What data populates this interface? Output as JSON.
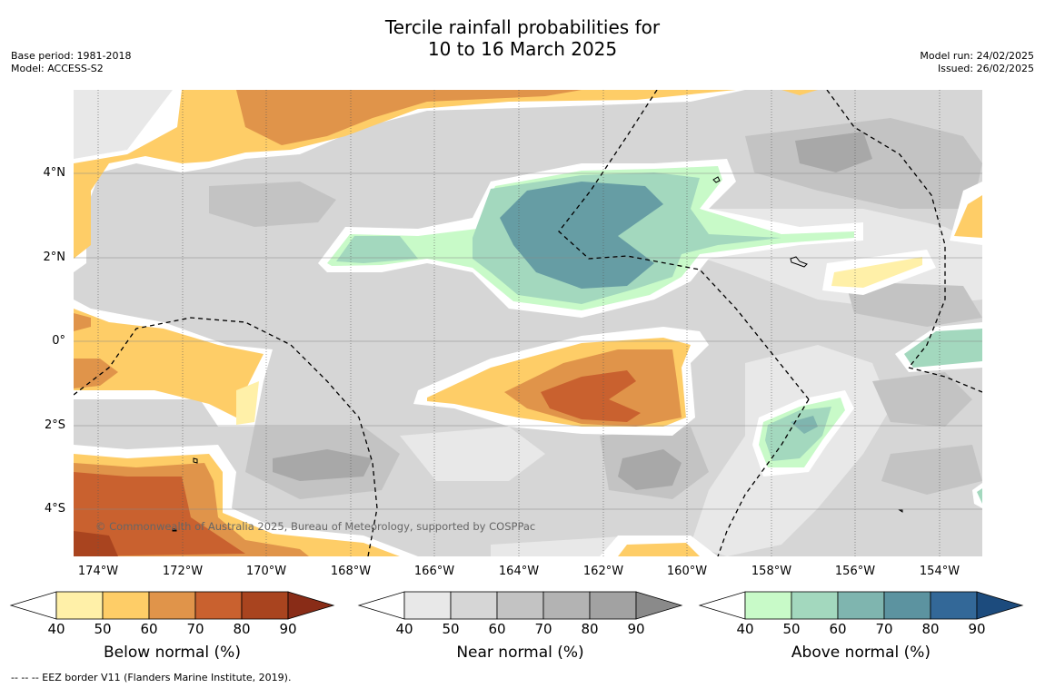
{
  "title_line1": "Tercile rainfall probabilities for",
  "title_line2": "10 to 16 March 2025",
  "base_period": "Base period: 1981-2018",
  "model": "Model: ACCESS-S2",
  "model_run": "Model run: 24/02/2025",
  "issued": "Issued: 26/02/2025",
  "copyright": "© Commonwealth of Australia 2025, Bureau of Meteorology, supported by COSPPac",
  "footnote": "-- -- -- EEZ border V11 (Flanders Marine Institute, 2019).",
  "map": {
    "lon_labels": [
      "174°W",
      "172°W",
      "170°W",
      "168°W",
      "166°W",
      "164°W",
      "162°W",
      "160°W",
      "158°W",
      "156°W",
      "154°W"
    ],
    "lat_labels": [
      "4°N",
      "2°N",
      "0°",
      "2°S",
      "4°S"
    ]
  },
  "colorbars": [
    {
      "title": "Below normal (%)",
      "ticks": [
        "40",
        "50",
        "60",
        "70",
        "80",
        "90"
      ],
      "colors": [
        "#fff0a8",
        "#fecd67",
        "#e0944a",
        "#c9612f",
        "#a9441f",
        "#892c17"
      ]
    },
    {
      "title": "Near normal (%)",
      "ticks": [
        "40",
        "50",
        "60",
        "70",
        "80",
        "90"
      ],
      "colors": [
        "#e8e8e8",
        "#d6d6d6",
        "#c3c3c3",
        "#b3b3b3",
        "#a2a2a2",
        "#8a8a8a"
      ]
    },
    {
      "title": "Above normal (%)",
      "ticks": [
        "40",
        "50",
        "60",
        "70",
        "80",
        "90"
      ],
      "colors": [
        "#c8fac8",
        "#a3d8be",
        "#7fb5af",
        "#5c93a0",
        "#336898",
        "#1c4b7d"
      ]
    }
  ]
}
